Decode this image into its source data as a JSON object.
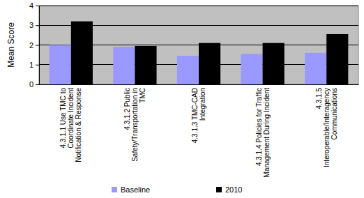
{
  "chart_data": {
    "type": "bar",
    "y_label": "Mean Score",
    "categories": [
      "4.3.1.1 Use TMC to Coordinate Incident Notification & Response",
      "4.3.1.2 Public Safety/Transportation in TMC",
      "4.3.1.3 TMC-CAD Integration",
      "4.3.1.4 Policies for Traffic Management During Incident",
      "4.3.1.5 Interoperable/Interagency Communications"
    ],
    "series": [
      {
        "name": "Baseline",
        "color": "#9999ff",
        "values": [
          2.0,
          1.9,
          1.45,
          1.55,
          1.6
        ]
      },
      {
        "name": "2010",
        "color": "#000000",
        "values": [
          3.2,
          1.95,
          2.1,
          2.1,
          2.55
        ]
      }
    ],
    "ylim": [
      0,
      4
    ],
    "yticks": [
      0,
      1,
      2,
      3,
      4
    ],
    "grid": true,
    "legend": "bottom"
  }
}
